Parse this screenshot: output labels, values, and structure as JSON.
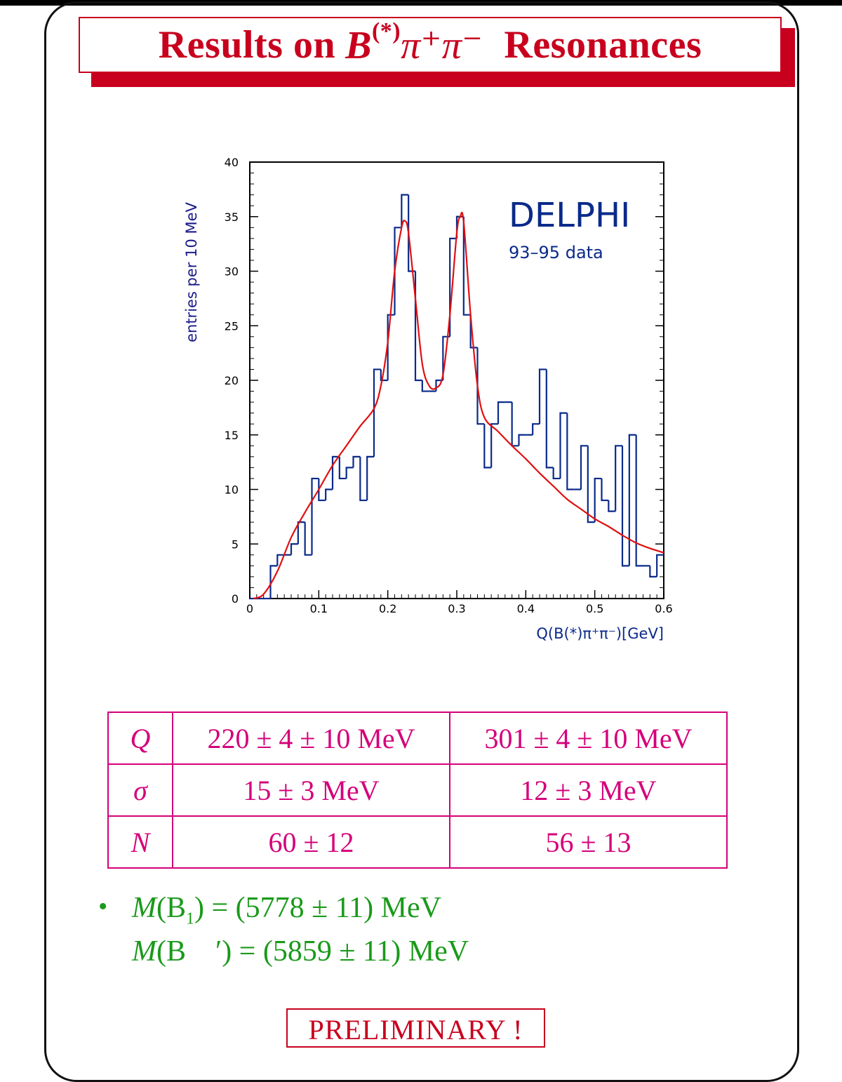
{
  "title": {
    "prefix": "Results on",
    "base": "B",
    "sup": "(*)",
    "pions": "π⁺π⁻",
    "suffix": "Resonances"
  },
  "chart_data": {
    "type": "histogram",
    "label": "DELPHI",
    "sublabel": "93–95 data",
    "ylabel": "entries per 10 MeV",
    "xlabel": "Q(B(*)π⁺π⁻)[GeV]",
    "xlim": [
      0,
      0.6
    ],
    "ylim": [
      0,
      40
    ],
    "xticks": [
      0,
      0.1,
      0.2,
      0.3,
      0.4,
      0.5,
      0.6
    ],
    "xtick_labels": [
      "0",
      "0.1",
      "0.2",
      "0.3",
      "0.4",
      "0.5",
      "0.6"
    ],
    "yticks": [
      0,
      5,
      10,
      15,
      20,
      25,
      30,
      35,
      40
    ],
    "bin_width": 0.01,
    "bin_edges_start": 0.0,
    "values": [
      0,
      0,
      0,
      3,
      4,
      4,
      5,
      7,
      4,
      11,
      9,
      10,
      13,
      11,
      12,
      13,
      9,
      13,
      21,
      20,
      26,
      34,
      37,
      30,
      20,
      19,
      19,
      20,
      24,
      33,
      35,
      26,
      23,
      16,
      12,
      16,
      18,
      18,
      14,
      15,
      15,
      16,
      21,
      12,
      11,
      17,
      10,
      10,
      14,
      7,
      11,
      9,
      8,
      14,
      3,
      15,
      3,
      3,
      2,
      4
    ],
    "fit": {
      "x": [
        0.005,
        0.02,
        0.04,
        0.06,
        0.08,
        0.1,
        0.12,
        0.14,
        0.16,
        0.18,
        0.19,
        0.2,
        0.21,
        0.22,
        0.225,
        0.23,
        0.24,
        0.25,
        0.26,
        0.27,
        0.28,
        0.29,
        0.3,
        0.305,
        0.31,
        0.32,
        0.33,
        0.34,
        0.36,
        0.38,
        0.4,
        0.42,
        0.44,
        0.46,
        0.48,
        0.5,
        0.52,
        0.54,
        0.56,
        0.58,
        0.6
      ],
      "y": [
        0,
        0.4,
        2.5,
        5.6,
        7.9,
        10,
        12.2,
        14,
        15.8,
        17.4,
        19.5,
        23.5,
        30,
        34,
        34.6,
        33.5,
        27.5,
        21.5,
        19.5,
        19.3,
        20.5,
        26,
        33.5,
        35,
        34.5,
        26,
        19.5,
        16.6,
        15.3,
        14,
        12.8,
        11.5,
        10.3,
        9.1,
        8.2,
        7.3,
        6.6,
        5.8,
        5.1,
        4.6,
        4.2
      ]
    }
  },
  "table": {
    "rows": [
      {
        "symbol": "Q",
        "col1": "220 ± 4 ± 10 MeV",
        "col2": "301 ± 4 ± 10 MeV"
      },
      {
        "symbol": "σ",
        "col1": "15 ± 3 MeV",
        "col2": "12 ± 3 MeV"
      },
      {
        "symbol": "N",
        "col1": "60 ± 12",
        "col2": "56 ± 13"
      }
    ]
  },
  "masses": {
    "bullet": "•",
    "line1": {
      "func": "M",
      "particle": "(B",
      "sub": "1",
      "rest": ") = (5778 ± 11) MeV"
    },
    "line2": {
      "func": "M",
      "particle": "(B",
      "rest": "′) = (5859 ± 11) MeV"
    }
  },
  "footer": "PRELIMINARY !",
  "colors": {
    "title": "#c8001e",
    "table": "#d4007a",
    "masses": "#1a9a1a",
    "histogram": "#0a2a8a",
    "fit": "#e01010",
    "axis_label": "#1a1a8a"
  }
}
